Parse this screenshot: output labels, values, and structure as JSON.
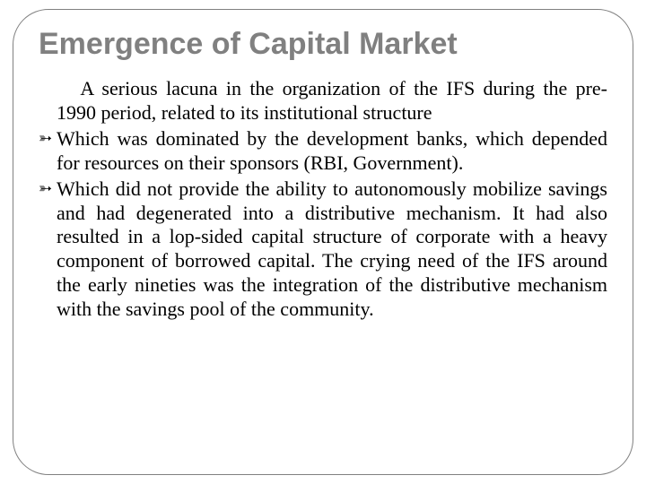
{
  "slide": {
    "title": "Emergence of Capital Market",
    "title_color": "#808080",
    "title_fontsize": 34,
    "title_font": "Arial",
    "border_color": "#808080",
    "border_radius": 40,
    "background_color": "#ffffff",
    "body_font": "Times New Roman",
    "body_fontsize": 22,
    "body_color": "#000000",
    "bullet_glyph": "➳",
    "paragraphs": [
      {
        "type": "plain",
        "text": "A serious lacuna in the organization of the IFS during the pre-1990 period, related to its institutional structure"
      },
      {
        "type": "bullet",
        "text": "Which was dominated by the development banks, which depended for resources on their sponsors (RBI, Government)."
      },
      {
        "type": "bullet",
        "text": "Which did not provide the ability to autonomously mobilize savings and had degenerated into a distributive mechanism. It had also resulted in a lop-sided capital structure of corporate with a heavy component of borrowed capital. The crying need of the IFS around the early nineties was the integration of the distributive mechanism with the savings pool of the community."
      }
    ]
  }
}
